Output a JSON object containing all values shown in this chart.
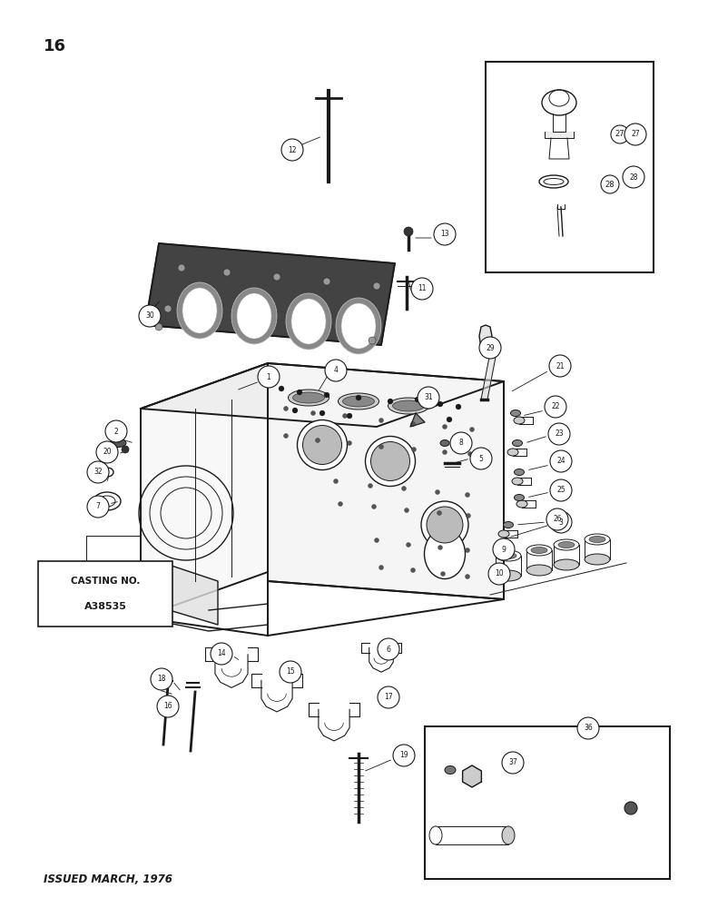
{
  "page_number": "16",
  "footer_text": "ISSUED MARCH, 1976",
  "casting_no_label": "CASTING NO.",
  "casting_no_value": "A38535",
  "bg_color": "#ffffff",
  "line_color": "#1a1a1a",
  "lw_main": 1.4,
  "lw_med": 1.0,
  "lw_thin": 0.7
}
